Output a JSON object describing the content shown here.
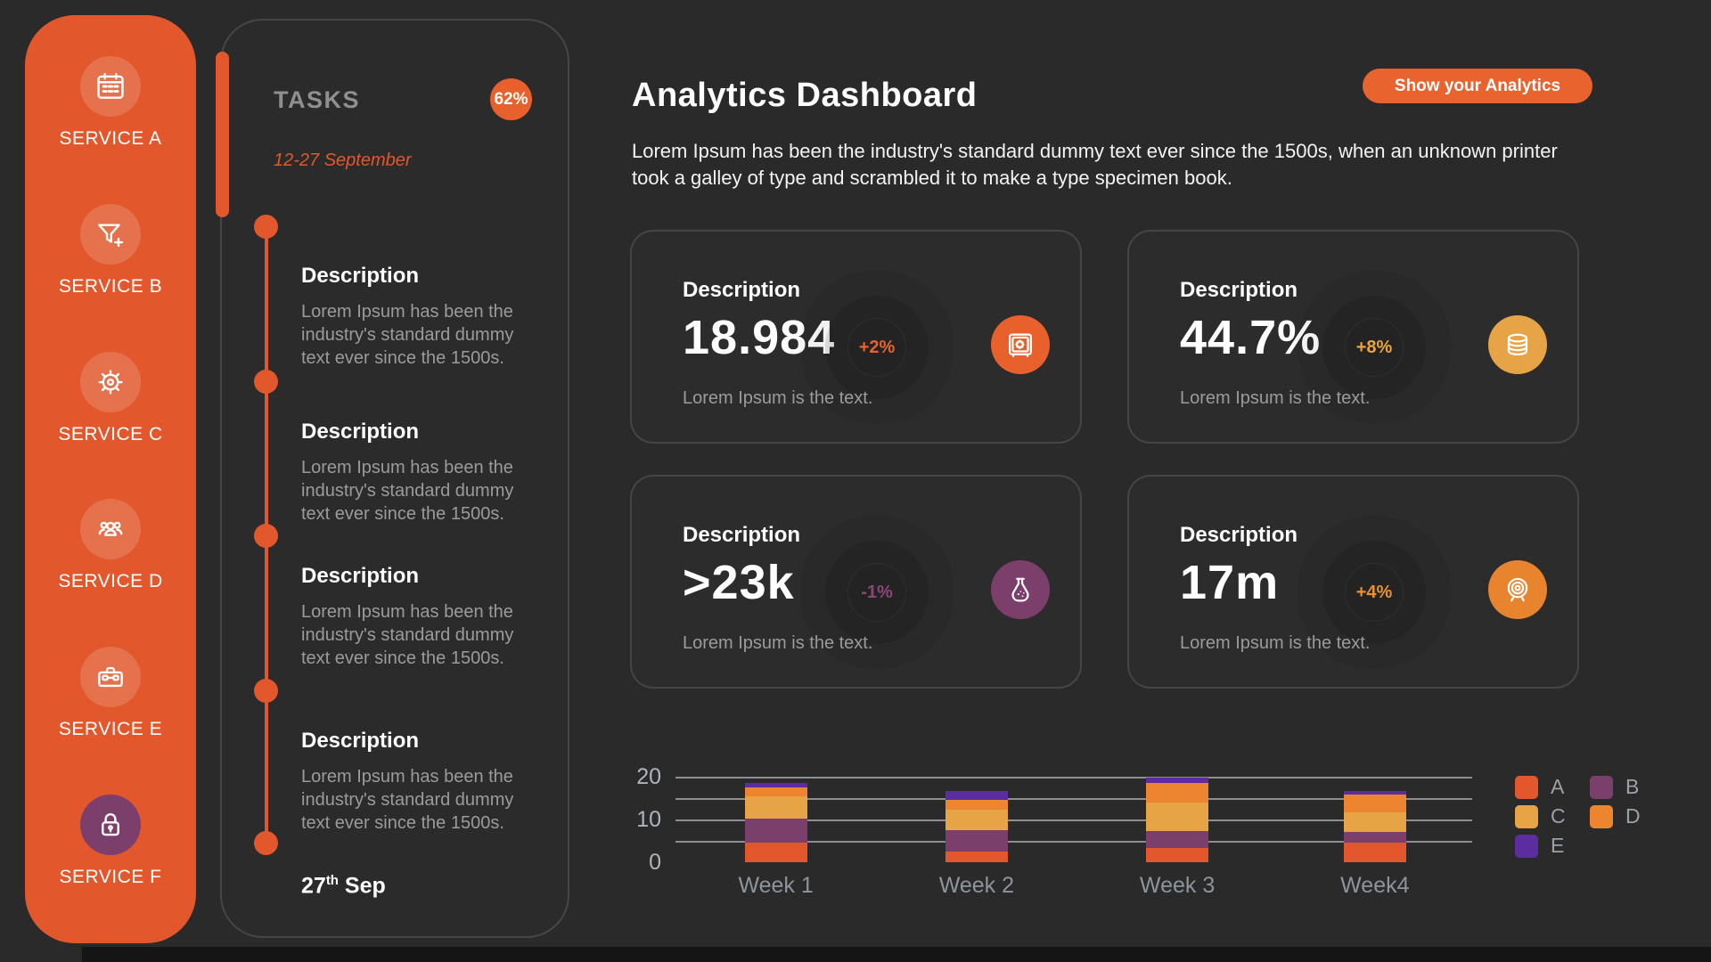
{
  "colors": {
    "background": "#2b2a2a",
    "primary_orange": "#e2572b",
    "button_orange": "#e9632e",
    "amber": "#e7a447",
    "plum": "#7c3f6b",
    "violet": "#5b2d9e",
    "bright_orange": "#ec8430"
  },
  "sidebar": {
    "items": [
      {
        "label": "SERVICE A",
        "icon": "calendar-icon"
      },
      {
        "label": "SERVICE B",
        "icon": "funnel-add-icon"
      },
      {
        "label": "SERVICE C",
        "icon": "gear-icon"
      },
      {
        "label": "SERVICE D",
        "icon": "users-icon"
      },
      {
        "label": "SERVICE E",
        "icon": "briefcase-icon"
      },
      {
        "label": "SERVICE F",
        "icon": "lock-icon"
      }
    ]
  },
  "tasks": {
    "title": "TASKS",
    "progress_badge": "62%",
    "date_range": "12-27 September",
    "items": [
      {
        "heading": "Description",
        "body": "Lorem Ipsum has been the industry's standard dummy text ever since the 1500s."
      },
      {
        "heading": "Description",
        "body": "Lorem Ipsum has been the industry's standard dummy text ever since the 1500s."
      },
      {
        "heading": "Description",
        "body": "Lorem Ipsum has been the industry's standard dummy text ever since the 1500s."
      },
      {
        "heading": "Description",
        "body": "Lorem Ipsum has been the industry's standard dummy text ever since the 1500s."
      }
    ],
    "end_date": {
      "day": "27",
      "suffix": "th",
      "month": " Sep"
    }
  },
  "header": {
    "title": "Analytics Dashboard",
    "button_label": "Show your Analytics",
    "intro": "Lorem Ipsum has been the industry's standard dummy text ever since the 1500s, when an unknown printer took a galley of type and scrambled it to make a type specimen book."
  },
  "stat_cards": [
    {
      "title": "Description",
      "value": "18.984",
      "delta": "+2%",
      "delta_color": "#e8622c",
      "icon": "safe-icon",
      "accent": "#e8612c",
      "subtext": "Lorem Ipsum is the text."
    },
    {
      "title": "Description",
      "value": "44.7%",
      "delta": "+8%",
      "delta_color": "#e7a43f",
      "icon": "coins-icon",
      "accent": "#e7a447",
      "subtext": "Lorem Ipsum is the text."
    },
    {
      "title": "Description",
      "value": ">23k",
      "delta": "-1%",
      "delta_color": "#8b4677",
      "icon": "flask-icon",
      "accent": "#7c3f6b",
      "subtext": "Lorem Ipsum is the text."
    },
    {
      "title": "Description",
      "value": "17m",
      "delta": "+4%",
      "delta_color": "#e8912e",
      "icon": "target-icon",
      "accent": "#e8832e",
      "subtext": "Lorem Ipsum is the text."
    }
  ],
  "chart_data": {
    "type": "bar",
    "stacked": true,
    "categories": [
      "Week 1",
      "Week 2",
      "Week 3",
      "Week4"
    ],
    "series": [
      {
        "name": "A",
        "color": "#e2572b",
        "values": [
          4.6,
          2.6,
          3.3,
          4.6
        ]
      },
      {
        "name": "B",
        "color": "#7b3f6b",
        "values": [
          5.7,
          4.9,
          4.1,
          2.4
        ]
      },
      {
        "name": "C",
        "color": "#e7a447",
        "values": [
          5.2,
          4.7,
          6.5,
          4.7
        ]
      },
      {
        "name": "D",
        "color": "#ec8430",
        "values": [
          2.1,
          2.4,
          4.6,
          4.2
        ]
      },
      {
        "name": "E",
        "color": "#5b2d9e",
        "values": [
          0.9,
          2.1,
          1.3,
          0.8
        ]
      }
    ],
    "ylim": [
      0,
      20
    ],
    "ytick_labels": [
      "20",
      "10",
      "0"
    ],
    "gridlines_at": [
      20,
      15,
      10,
      5
    ],
    "grid": true,
    "legend_position": "right",
    "legend_rows": [
      [
        "A",
        "B"
      ],
      [
        "C",
        "D"
      ],
      [
        "E"
      ]
    ]
  }
}
